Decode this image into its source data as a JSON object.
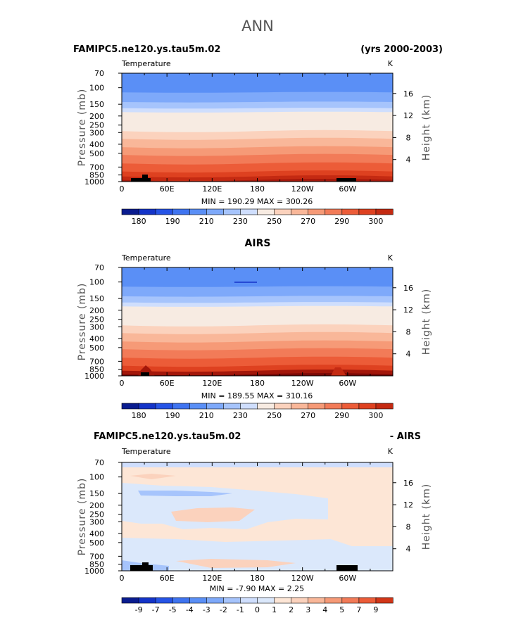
{
  "page": {
    "season": "ANN"
  },
  "colors": {
    "palette_abs": [
      "#0a1c8f",
      "#1434c8",
      "#2654e6",
      "#3f74f0",
      "#5a8ff6",
      "#7ea9fa",
      "#a6c4fc",
      "#cfdefd",
      "#f7ebe2",
      "#fbd2bd",
      "#f9b799",
      "#f69a77",
      "#f27b58",
      "#ec5c38",
      "#de4120",
      "#c42a12",
      "#a3170a",
      "#7a0806"
    ],
    "palette_diff": [
      "#0a1c8f",
      "#1434c8",
      "#2654e6",
      "#3f74f0",
      "#5a8ff6",
      "#7ea9fa",
      "#a6c4fc",
      "#cfdefd",
      "#dbe8fb",
      "#fde6d6",
      "#fbd2bd",
      "#f9b799",
      "#f69a77",
      "#f27b58",
      "#ec5c38",
      "#d23618",
      "#a3170a",
      "#7a0806"
    ]
  },
  "axes": {
    "left_label": "Pressure (mb)",
    "right_label": "Height (km)",
    "pressure_ticks": [
      "70",
      "100",
      "150",
      "200",
      "250",
      "300",
      "400",
      "500",
      "700",
      "850",
      "1000"
    ],
    "height_ticks": [
      "16",
      "12",
      "8",
      "4"
    ],
    "lon_ticks": [
      "0",
      "60E",
      "120E",
      "180",
      "120W",
      "60W"
    ]
  },
  "chart_data": [
    {
      "type": "heatmap",
      "left_title": "FAMIPC5.ne120.ys.tau5m.02",
      "right_title": "(yrs 2000-2003)",
      "variable": "Temperature",
      "units": "K",
      "stats": "MIN = 190.29   MAX = 300.26",
      "colorbar_labels": [
        "180",
        "190",
        "210",
        "230",
        "250",
        "270",
        "290",
        "300"
      ],
      "colorbar_levels": [
        175,
        180,
        185,
        190,
        200,
        210,
        220,
        230,
        240,
        250,
        260,
        270,
        280,
        290,
        295,
        300,
        305
      ],
      "ylim": [
        1000,
        70
      ],
      "xlim": [
        0,
        360
      ]
    },
    {
      "type": "heatmap",
      "center_title": "AIRS",
      "variable": "Temperature",
      "units": "K",
      "stats": "MIN = 189.55   MAX = 310.16",
      "colorbar_labels": [
        "180",
        "190",
        "210",
        "230",
        "250",
        "270",
        "290",
        "300"
      ],
      "colorbar_levels": [
        175,
        180,
        185,
        190,
        200,
        210,
        220,
        230,
        240,
        250,
        260,
        270,
        280,
        290,
        295,
        300,
        305
      ],
      "ylim": [
        1000,
        70
      ],
      "xlim": [
        0,
        360
      ]
    },
    {
      "type": "heatmap",
      "left_title": "FAMIPC5.ne120.ys.tau5m.02",
      "right_title": "- AIRS",
      "variable": "Temperature",
      "units": "K",
      "stats": "MIN =   -7.90   MAX =    2.25",
      "colorbar_labels": [
        "-9",
        "-7",
        "-5",
        "-4",
        "-3",
        "-2",
        "-1",
        "0",
        "1",
        "2",
        "3",
        "4",
        "5",
        "7",
        "9"
      ],
      "colorbar_levels": [
        -9,
        -7,
        -5,
        -4,
        -3,
        -2,
        -1,
        0,
        1,
        2,
        3,
        4,
        5,
        7,
        9
      ],
      "ylim": [
        1000,
        70
      ],
      "xlim": [
        0,
        360
      ]
    }
  ]
}
